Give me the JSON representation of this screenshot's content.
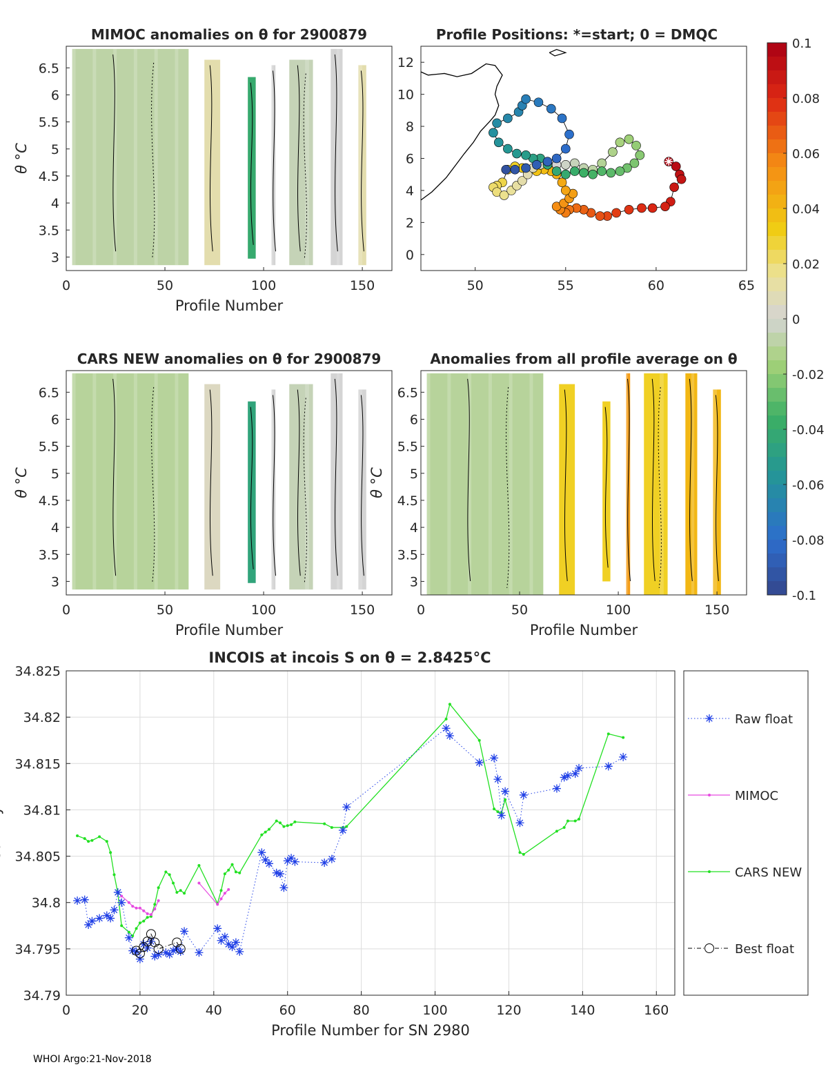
{
  "footer": "WHOI Argo:21-Nov-2018",
  "colors": {
    "raw": "#1f3fe6",
    "mimoc": "#e64ae0",
    "cars": "#22e022",
    "best": "#000000"
  },
  "chart_data": [
    {
      "id": "mimoc",
      "type": "heatmap",
      "title": "MIMOC anomalies on θ  for 2900879",
      "xlabel": "Profile Number",
      "ylabel": "θ °C",
      "xlim": [
        0,
        165
      ],
      "ylim": [
        2.75,
        6.9
      ],
      "xticks": [
        "0",
        "50",
        "100",
        "150"
      ],
      "yticks": [
        "3",
        "3.5",
        "4",
        "4.5",
        "5",
        "5.5",
        "6",
        "6.5"
      ],
      "dominant": "light green / grey anomalies near -0.01 to 0",
      "columns": [
        {
          "x0": 3,
          "x1": 62,
          "t0": 2.85,
          "t1": 6.85,
          "v": -0.008
        },
        {
          "x0": 70,
          "x1": 78,
          "t0": 2.85,
          "t1": 6.65,
          "v": 0.01
        },
        {
          "x0": 92,
          "x1": 96,
          "t0": 2.97,
          "t1": 6.33,
          "v": -0.04
        },
        {
          "x0": 104,
          "x1": 106,
          "t0": 2.85,
          "t1": 6.55,
          "v": 0.0
        },
        {
          "x0": 113,
          "x1": 125,
          "t0": 2.85,
          "t1": 6.65,
          "v": -0.005
        },
        {
          "x0": 134,
          "x1": 140,
          "t0": 2.85,
          "t1": 6.85,
          "v": 0.0
        },
        {
          "x0": 148,
          "x1": 152,
          "t0": 2.85,
          "t1": 6.55,
          "v": 0.01
        }
      ]
    },
    {
      "id": "positions",
      "type": "scatter",
      "title": "Profile Positions: *=start; 0 = DMQC",
      "xlim": [
        47,
        65
      ],
      "ylim": [
        -1,
        13
      ],
      "xticks": [
        "50",
        "55",
        "60",
        "65"
      ],
      "yticks": [
        "0",
        "2",
        "4",
        "6",
        "8",
        "10",
        "12"
      ],
      "track": [
        [
          60.7,
          5.8
        ],
        [
          61.1,
          5.5
        ],
        [
          61.3,
          5.0
        ],
        [
          61.4,
          4.7
        ],
        [
          61.0,
          4.2
        ],
        [
          60.8,
          3.3
        ],
        [
          60.5,
          3.0
        ],
        [
          59.8,
          2.9
        ],
        [
          59.2,
          2.9
        ],
        [
          58.5,
          2.8
        ],
        [
          57.8,
          2.6
        ],
        [
          57.3,
          2.4
        ],
        [
          56.9,
          2.4
        ],
        [
          56.4,
          2.6
        ],
        [
          56.0,
          2.8
        ],
        [
          55.6,
          2.9
        ],
        [
          55.2,
          2.8
        ],
        [
          55.0,
          2.6
        ],
        [
          54.7,
          2.8
        ],
        [
          54.5,
          3.0
        ],
        [
          54.9,
          3.2
        ],
        [
          55.2,
          3.5
        ],
        [
          55.4,
          3.8
        ],
        [
          55.0,
          4.0
        ],
        [
          54.8,
          4.5
        ],
        [
          54.5,
          5.0
        ],
        [
          54.2,
          5.2
        ],
        [
          53.8,
          5.3
        ],
        [
          53.4,
          5.2
        ],
        [
          53.0,
          5.3
        ],
        [
          52.6,
          5.4
        ],
        [
          52.2,
          5.5
        ],
        [
          51.8,
          5.3
        ],
        [
          51.5,
          4.5
        ],
        [
          51.2,
          4.3
        ],
        [
          51.0,
          4.2
        ],
        [
          51.2,
          3.9
        ],
        [
          51.6,
          3.7
        ],
        [
          52.0,
          4.0
        ],
        [
          52.3,
          4.3
        ],
        [
          52.6,
          4.6
        ],
        [
          52.9,
          5.0
        ],
        [
          53.2,
          5.4
        ],
        [
          53.6,
          5.6
        ],
        [
          54.0,
          5.7
        ],
        [
          54.5,
          5.6
        ],
        [
          55.0,
          5.6
        ],
        [
          55.5,
          5.7
        ],
        [
          56.0,
          5.4
        ],
        [
          56.5,
          5.3
        ],
        [
          57.0,
          5.7
        ],
        [
          57.6,
          6.4
        ],
        [
          58.0,
          7.0
        ],
        [
          58.5,
          7.2
        ],
        [
          58.9,
          6.8
        ],
        [
          59.1,
          6.2
        ],
        [
          58.8,
          5.7
        ],
        [
          58.4,
          5.4
        ],
        [
          58.0,
          5.2
        ],
        [
          57.5,
          5.1
        ],
        [
          57.0,
          5.2
        ],
        [
          56.5,
          5.0
        ],
        [
          56.0,
          5.1
        ],
        [
          55.5,
          5.2
        ],
        [
          55.0,
          5.0
        ],
        [
          54.5,
          5.2
        ],
        [
          54.0,
          5.6
        ],
        [
          53.6,
          6.0
        ],
        [
          53.2,
          6.0
        ],
        [
          52.8,
          6.2
        ],
        [
          52.3,
          6.3
        ],
        [
          51.8,
          6.6
        ],
        [
          51.3,
          7.0
        ],
        [
          51.0,
          7.6
        ],
        [
          51.2,
          8.2
        ],
        [
          51.8,
          8.5
        ],
        [
          52.4,
          8.9
        ],
        [
          52.6,
          9.3
        ],
        [
          52.8,
          9.7
        ],
        [
          53.5,
          9.5
        ],
        [
          54.2,
          9.1
        ],
        [
          54.8,
          8.5
        ],
        [
          55.2,
          7.5
        ],
        [
          55.0,
          6.6
        ],
        [
          54.5,
          6.0
        ],
        [
          54.0,
          5.8
        ],
        [
          53.4,
          5.6
        ],
        [
          52.8,
          5.4
        ],
        [
          52.2,
          5.3
        ],
        [
          51.7,
          5.3
        ]
      ],
      "coast": [
        [
          47,
          3.4
        ],
        [
          47.6,
          3.9
        ],
        [
          48.4,
          4.8
        ],
        [
          49.0,
          5.7
        ],
        [
          49.4,
          6.3
        ],
        [
          49.9,
          7.0
        ],
        [
          50.3,
          7.7
        ],
        [
          50.8,
          8.3
        ],
        [
          51.1,
          8.7
        ],
        [
          51.3,
          9.3
        ],
        [
          51.1,
          10.0
        ],
        [
          51.2,
          10.5
        ],
        [
          51.5,
          11.2
        ],
        [
          51.1,
          11.8
        ],
        [
          50.6,
          11.9
        ],
        [
          49.8,
          11.3
        ],
        [
          49.0,
          11.1
        ],
        [
          48.3,
          11.3
        ],
        [
          47.4,
          11.2
        ],
        [
          47,
          11.4
        ]
      ],
      "island": [
        [
          54.1,
          12.6
        ],
        [
          54.5,
          12.8
        ],
        [
          55.0,
          12.6
        ],
        [
          54.4,
          12.4
        ],
        [
          54.1,
          12.6
        ]
      ],
      "start": [
        60.7,
        5.8
      ]
    },
    {
      "id": "cars",
      "type": "heatmap",
      "title": "CARS NEW anomalies on θ for 2900879",
      "xlabel": "Profile Number",
      "ylabel": "θ °C",
      "xlim": [
        0,
        165
      ],
      "ylim": [
        2.75,
        6.9
      ],
      "xticks": [
        "0",
        "50",
        "100",
        "150"
      ],
      "yticks": [
        "3",
        "3.5",
        "4",
        "4.5",
        "5",
        "5.5",
        "6",
        "6.5"
      ],
      "columns": [
        {
          "x0": 3,
          "x1": 62,
          "t0": 2.85,
          "t1": 6.85,
          "v": -0.01
        },
        {
          "x0": 70,
          "x1": 78,
          "t0": 2.85,
          "t1": 6.65,
          "v": 0.005
        },
        {
          "x0": 92,
          "x1": 96,
          "t0": 2.97,
          "t1": 6.33,
          "v": -0.045
        },
        {
          "x0": 104,
          "x1": 106,
          "t0": 2.85,
          "t1": 6.55,
          "v": 0.0
        },
        {
          "x0": 113,
          "x1": 125,
          "t0": 2.85,
          "t1": 6.65,
          "v": -0.005
        },
        {
          "x0": 134,
          "x1": 140,
          "t0": 2.85,
          "t1": 6.85,
          "v": 0.0
        },
        {
          "x0": 148,
          "x1": 152,
          "t0": 2.85,
          "t1": 6.55,
          "v": 0.0
        }
      ]
    },
    {
      "id": "allavg",
      "type": "heatmap",
      "title": "Anomalies from all profile average on θ",
      "xlabel": "Profile Number",
      "ylabel": "θ °C",
      "xlim": [
        0,
        165
      ],
      "ylim": [
        2.75,
        6.9
      ],
      "xticks": [
        "0",
        "50",
        "100",
        "150"
      ],
      "yticks": [
        "3",
        "3.5",
        "4",
        "4.5",
        "5",
        "5.5",
        "6",
        "6.5"
      ],
      "columns": [
        {
          "x0": 3,
          "x1": 62,
          "t0": 2.75,
          "t1": 6.85,
          "v": -0.01
        },
        {
          "x0": 70,
          "x1": 78,
          "t0": 2.75,
          "t1": 6.65,
          "v": 0.03
        },
        {
          "x0": 92,
          "x1": 96,
          "t0": 3.0,
          "t1": 6.33,
          "v": 0.03
        },
        {
          "x0": 104,
          "x1": 106,
          "t0": 2.75,
          "t1": 6.85,
          "v": 0.05
        },
        {
          "x0": 113,
          "x1": 125,
          "t0": 2.75,
          "t1": 6.85,
          "v": 0.03
        },
        {
          "x0": 134,
          "x1": 140,
          "t0": 2.75,
          "t1": 6.85,
          "v": 0.04
        },
        {
          "x0": 148,
          "x1": 152,
          "t0": 2.75,
          "t1": 6.55,
          "v": 0.04
        }
      ]
    },
    {
      "id": "colorbar",
      "type": "colorbar",
      "range": [
        -0.1,
        0.1
      ],
      "ticks": [
        "0.1",
        "0.08",
        "0.06",
        "0.04",
        "0.02",
        "0",
        "-0.02",
        "-0.04",
        "-0.06",
        "-0.08",
        "-0.1"
      ]
    },
    {
      "id": "salinity",
      "type": "line",
      "title": "INCOIS at incois S on θ = 2.8425°C",
      "xlabel": "Profile Number for SN 2980",
      "ylabel": "Salinity",
      "xlim": [
        0,
        165
      ],
      "ylim": [
        34.79,
        34.825
      ],
      "xticks": [
        "0",
        "20",
        "40",
        "60",
        "80",
        "100",
        "120",
        "140",
        "160"
      ],
      "yticks": [
        "34.79",
        "34.795",
        "34.8",
        "34.805",
        "34.81",
        "34.815",
        "34.82",
        "34.825"
      ],
      "legend": [
        "Raw float",
        "MIMOC",
        "CARS NEW",
        "Best float"
      ],
      "series": [
        {
          "name": "Raw float",
          "x": [
            3,
            5,
            6,
            7,
            9,
            11,
            12,
            13,
            14,
            15,
            17,
            18,
            19,
            20,
            21,
            22,
            23,
            24,
            25,
            27,
            28,
            29,
            30,
            31,
            32,
            36,
            41,
            42,
            43,
            44,
            45,
            46,
            47,
            53,
            54,
            55,
            57,
            58,
            59,
            60,
            61,
            62,
            70,
            72,
            75,
            76,
            103,
            104,
            112,
            116,
            117,
            118,
            119,
            123,
            124,
            133,
            135,
            136,
            138,
            139,
            147,
            151
          ],
          "y": [
            34.8002,
            34.8003,
            34.7976,
            34.798,
            34.7983,
            34.7986,
            34.7983,
            34.7992,
            34.8011,
            34.8,
            34.7962,
            34.7948,
            34.7947,
            34.7939,
            34.7955,
            34.7951,
            34.7958,
            34.7942,
            34.7944,
            34.7946,
            34.7944,
            34.7948,
            34.795,
            34.7947,
            34.7969,
            34.7946,
            34.7972,
            34.7959,
            34.7963,
            34.7955,
            34.7952,
            34.7957,
            34.7947,
            34.8054,
            34.8046,
            34.8042,
            34.8032,
            34.8031,
            34.8016,
            34.8045,
            34.8048,
            34.8044,
            34.8043,
            34.8047,
            34.8078,
            34.8103,
            34.8188,
            34.818,
            34.8151,
            34.8156,
            34.8133,
            34.8094,
            34.812,
            34.8086,
            34.8116,
            34.8123,
            34.8135,
            34.8137,
            34.8139,
            34.8145,
            34.8147,
            34.8157
          ]
        },
        {
          "name": "MIMOC",
          "segments": [
            {
              "x": [
                15,
                17,
                18,
                19,
                20,
                21,
                22,
                23,
                24,
                25
              ],
              "y": [
                34.8007,
                34.8,
                34.7996,
                34.7994,
                34.7994,
                34.7991,
                34.7988,
                34.7987,
                34.7993,
                34.8002
              ]
            },
            {
              "x": [
                36,
                41,
                42,
                43,
                44
              ],
              "y": [
                34.8021,
                34.7998,
                34.8004,
                34.801,
                34.8014
              ]
            }
          ]
        },
        {
          "name": "CARS NEW",
          "x": [
            3,
            5,
            6,
            7,
            9,
            11,
            12,
            13,
            14,
            15,
            17,
            18,
            19,
            20,
            21,
            22,
            23,
            24,
            25,
            27,
            28,
            29,
            30,
            31,
            32,
            36,
            41,
            42,
            43,
            44,
            45,
            46,
            47,
            53,
            54,
            55,
            57,
            58,
            59,
            60,
            61,
            62,
            70,
            72,
            75,
            76,
            103,
            104,
            112,
            116,
            117,
            118,
            119,
            123,
            124,
            133,
            135,
            136,
            138,
            139,
            147,
            151
          ],
          "y": [
            34.8072,
            34.8069,
            34.8066,
            34.8067,
            34.8071,
            34.8066,
            34.8054,
            34.803,
            34.801,
            34.7975,
            34.7968,
            34.7964,
            34.7972,
            34.7978,
            34.798,
            34.7984,
            34.7985,
            34.7998,
            34.8016,
            34.8033,
            34.803,
            34.8021,
            34.8011,
            34.8013,
            34.801,
            34.804,
            34.7999,
            34.8013,
            34.8031,
            34.8035,
            34.8041,
            34.8033,
            34.8032,
            34.8073,
            34.8076,
            34.8079,
            34.8088,
            34.8086,
            34.8082,
            34.8083,
            34.8084,
            34.8087,
            34.8085,
            34.8081,
            34.8081,
            34.8082,
            34.8198,
            34.8214,
            34.8175,
            34.8101,
            34.8098,
            34.8097,
            34.8111,
            34.8054,
            34.8052,
            34.8077,
            34.8081,
            34.8088,
            34.8088,
            34.809,
            34.8182,
            34.8178
          ]
        },
        {
          "name": "Best float",
          "x": [
            19,
            20,
            21,
            22,
            23,
            24,
            25,
            30,
            31
          ],
          "y": [
            34.7948,
            34.7945,
            34.7952,
            34.7958,
            34.7966,
            34.7957,
            34.795,
            34.7957,
            34.795
          ]
        }
      ]
    }
  ]
}
